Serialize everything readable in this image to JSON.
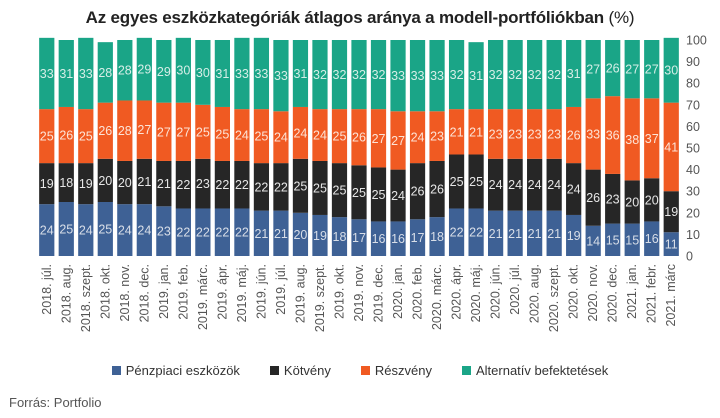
{
  "chart_data": {
    "type": "bar",
    "stacked": true,
    "title": "Az egyes eszközkategóriák átlagos aránya a modell-portfóliókban",
    "title_unit": "(%)",
    "ylim": [
      0,
      100
    ],
    "yticks": [
      0,
      10,
      20,
      30,
      40,
      50,
      60,
      70,
      80,
      90,
      100
    ],
    "y_axis_position": "right",
    "grid": false,
    "legend_position": "bottom",
    "categories": [
      "2018. júl.",
      "2018. aug.",
      "2018. szept.",
      "2018. okt.",
      "2018. nov.",
      "2018. dec.",
      "2019. jan.",
      "2019. feb.",
      "2019. márc.",
      "2019. ápr.",
      "2019. máj.",
      "2019. jún.",
      "2019. júl.",
      "2019. aug.",
      "2019. szept.",
      "2019. okt.",
      "2019. nov.",
      "2019. dec.",
      "2020. jan.",
      "2020. feb.",
      "2020. márc.",
      "2020. ápr.",
      "2020. máj.",
      "2020. jún.",
      "2020. júl.",
      "2020. aug.",
      "2020. szept.",
      "2020. okt.",
      "2020. nov.",
      "2020. dec.",
      "2021. jan.",
      "2021. febr.",
      "2021. márc"
    ],
    "series": [
      {
        "name": "Pénzpiaci eszközök",
        "color": "#3e6195",
        "label_color": "#d8dee8",
        "values": [
          24,
          25,
          24,
          25,
          24,
          24,
          23,
          22,
          22,
          22,
          22,
          21,
          21,
          20,
          19,
          18,
          17,
          16,
          16,
          17,
          18,
          22,
          22,
          21,
          21,
          21,
          21,
          19,
          14,
          15,
          15,
          16,
          11
        ]
      },
      {
        "name": "Kötvény",
        "color": "#262626",
        "label_color": "#e6e6e6",
        "values": [
          19,
          18,
          19,
          20,
          20,
          21,
          21,
          22,
          23,
          22,
          22,
          22,
          22,
          25,
          25,
          25,
          25,
          25,
          24,
          26,
          26,
          25,
          25,
          24,
          24,
          24,
          24,
          24,
          26,
          23,
          20,
          20,
          19
        ]
      },
      {
        "name": "Részvény",
        "color": "#f05a22",
        "label_color": "#fde3d6",
        "values": [
          25,
          26,
          25,
          26,
          28,
          27,
          27,
          27,
          25,
          25,
          24,
          25,
          24,
          24,
          24,
          25,
          26,
          27,
          27,
          24,
          23,
          21,
          21,
          23,
          23,
          23,
          23,
          26,
          33,
          36,
          38,
          37,
          41
        ]
      },
      {
        "name": "Alternatív befektetések",
        "color": "#1aa587",
        "label_color": "#d6eee7",
        "values": [
          33,
          31,
          33,
          28,
          28,
          29,
          29,
          30,
          30,
          31,
          33,
          33,
          33,
          31,
          32,
          32,
          32,
          32,
          33,
          33,
          33,
          32,
          31,
          32,
          32,
          32,
          32,
          31,
          27,
          26,
          27,
          27,
          30
        ]
      }
    ]
  },
  "source": "Forrás: Portfolio"
}
